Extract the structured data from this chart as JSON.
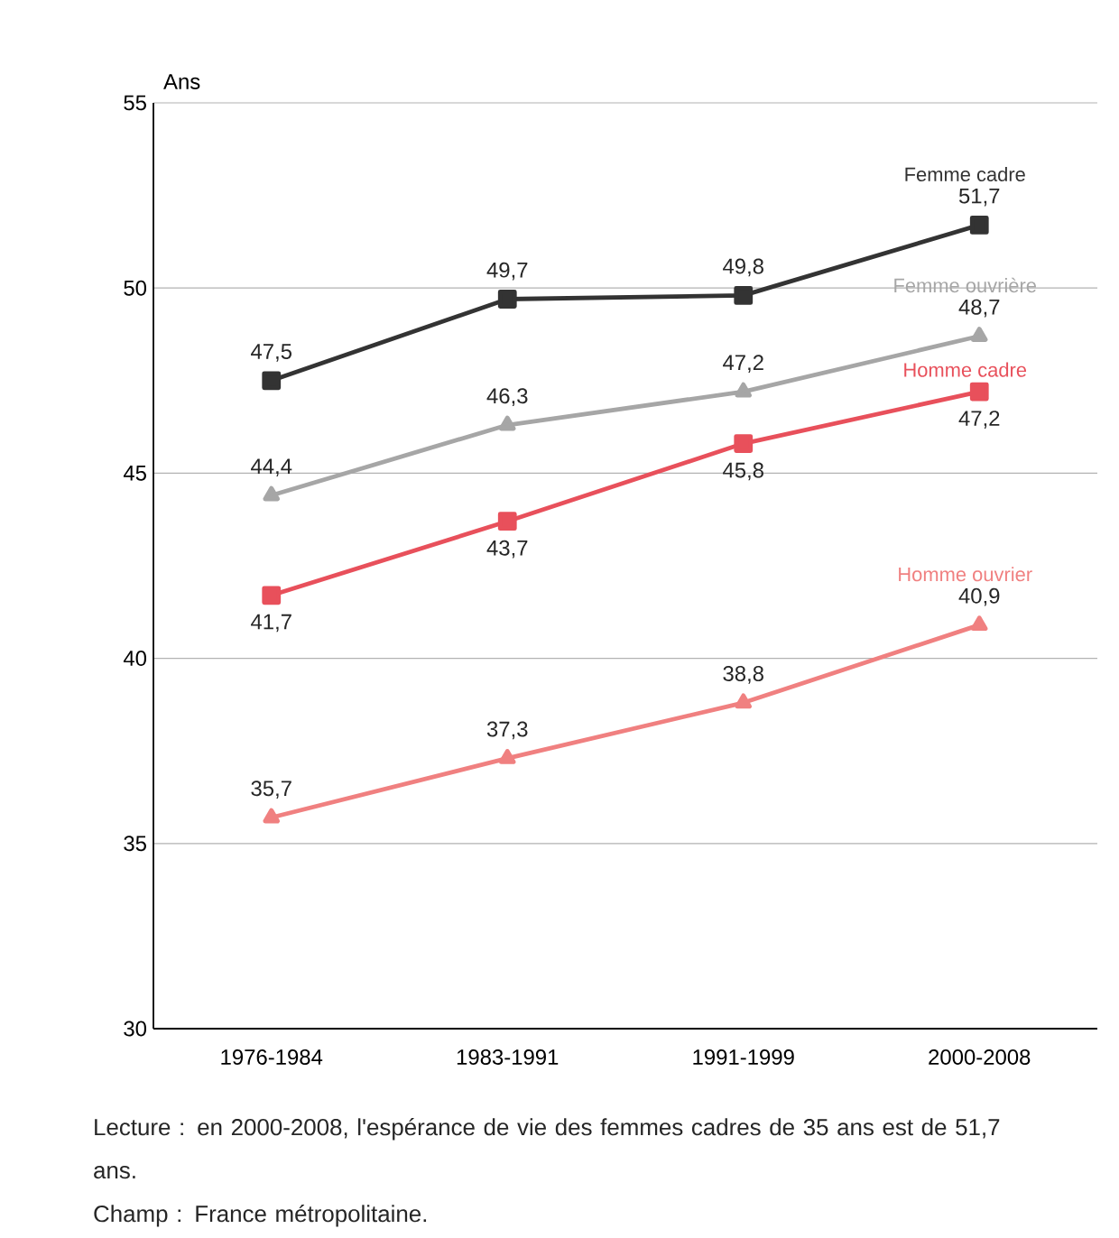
{
  "chart_data": {
    "type": "line",
    "ylabel": "Ans",
    "categories": [
      "1976-1984",
      "1983-1991",
      "1991-1999",
      "2000-2008"
    ],
    "ylim": [
      30,
      55
    ],
    "yticks": [
      30,
      35,
      40,
      45,
      50,
      55
    ],
    "grid": "y",
    "series": [
      {
        "name": "Femme cadre",
        "color": "#333333",
        "marker": "square",
        "values": [
          47.5,
          49.7,
          49.8,
          51.7
        ],
        "value_labels": [
          "47,5",
          "49,7",
          "49,8",
          "51,7"
        ]
      },
      {
        "name": "Femme ouvrière",
        "color": "#a6a6a6",
        "marker": "triangle",
        "values": [
          44.4,
          46.3,
          47.2,
          48.7
        ],
        "value_labels": [
          "44,4",
          "46,3",
          "47,2",
          "48,7"
        ]
      },
      {
        "name": "Homme cadre",
        "color": "#e8505b",
        "marker": "square",
        "values": [
          41.7,
          43.7,
          45.8,
          47.2
        ],
        "value_labels": [
          "41,7",
          "43,7",
          "45,8",
          "47,2"
        ]
      },
      {
        "name": "Homme ouvrier",
        "color": "#f08080",
        "marker": "triangle",
        "values": [
          35.7,
          37.3,
          38.8,
          40.9
        ],
        "value_labels": [
          "35,7",
          "37,3",
          "38,8",
          "40,9"
        ]
      }
    ],
    "annotations": [
      "Lecture : en 2000-2008, l'espérance de vie des femmes cadres de 35 ans est de 51,7 ans.",
      "Champ : France métropolitaine."
    ]
  }
}
